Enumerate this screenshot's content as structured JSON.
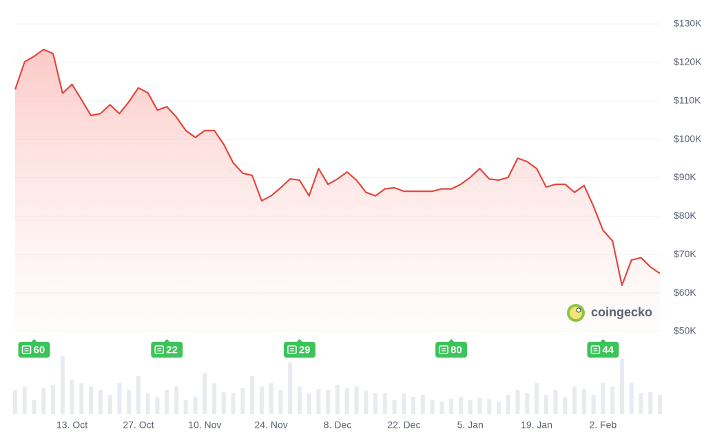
{
  "chart_data": {
    "type": "line",
    "categories": [
      null,
      null,
      null,
      null,
      null,
      null,
      "13. Oct",
      null,
      null,
      null,
      null,
      null,
      null,
      "27. Oct",
      null,
      null,
      null,
      null,
      null,
      null,
      "10. Nov",
      null,
      null,
      null,
      null,
      null,
      null,
      "24. Nov",
      null,
      null,
      null,
      null,
      null,
      null,
      "8. Dec",
      null,
      null,
      null,
      null,
      null,
      null,
      "22. Dec",
      null,
      null,
      null,
      null,
      null,
      null,
      "5. Jan",
      null,
      null,
      null,
      null,
      null,
      null,
      "19. Jan",
      null,
      null,
      null,
      null,
      null,
      null,
      "2. Feb",
      null,
      null,
      null,
      null,
      null,
      null
    ],
    "series": [
      {
        "name": null,
        "color": "#e5453b",
        "values": [
          113000,
          120200,
          121600,
          123400,
          122300,
          112000,
          114300,
          110300,
          106200,
          106700,
          109000,
          106700,
          109800,
          113400,
          112100,
          107600,
          108500,
          105800,
          102300,
          100500,
          102300,
          102300,
          98700,
          93900,
          91200,
          90600,
          84000,
          85300,
          87400,
          89700,
          89400,
          85300,
          92400,
          88300,
          89700,
          91500,
          89400,
          86200,
          85300,
          87100,
          87400,
          86500,
          86500,
          86500,
          86500,
          87100,
          87100,
          88300,
          90100,
          92400,
          89700,
          89400,
          90100,
          95100,
          94200,
          92400,
          87600,
          88300,
          88300,
          86200,
          88000,
          82600,
          76300,
          73600,
          62000,
          68600,
          69200,
          66800,
          65100
        ]
      }
    ],
    "volume": {
      "color": "#e8ebef",
      "values": [
        35,
        40,
        20,
        38,
        42,
        84,
        50,
        45,
        40,
        35,
        28,
        45,
        35,
        55,
        30,
        25,
        35,
        40,
        20,
        25,
        60,
        45,
        32,
        30,
        38,
        55,
        40,
        45,
        35,
        75,
        40,
        30,
        36,
        35,
        42,
        38,
        40,
        34,
        30,
        30,
        20,
        30,
        25,
        28,
        20,
        18,
        22,
        25,
        20,
        24,
        22,
        18,
        28,
        35,
        30,
        45,
        28,
        35,
        25,
        40,
        36,
        28,
        45,
        40,
        80,
        45,
        30,
        32,
        28
      ]
    },
    "news": {
      "color": "#3cc35a",
      "counts": [
        null,
        null,
        60,
        null,
        null,
        null,
        null,
        null,
        null,
        null,
        null,
        null,
        null,
        null,
        null,
        null,
        22,
        null,
        null,
        null,
        null,
        null,
        null,
        null,
        null,
        null,
        null,
        null,
        null,
        null,
        29,
        null,
        null,
        null,
        null,
        null,
        null,
        null,
        null,
        null,
        null,
        null,
        null,
        null,
        null,
        null,
        80,
        null,
        null,
        null,
        null,
        null,
        null,
        null,
        null,
        null,
        null,
        null,
        null,
        null,
        null,
        null,
        44,
        null,
        null,
        null,
        null,
        null,
        null
      ]
    },
    "ylim": [
      50000,
      130000
    ],
    "yticks": [
      {
        "value": 50000,
        "label": "$50K"
      },
      {
        "value": 60000,
        "label": "$60K"
      },
      {
        "value": 70000,
        "label": "$70K"
      },
      {
        "value": 80000,
        "label": "$80K"
      },
      {
        "value": 90000,
        "label": "$90K"
      },
      {
        "value": 100000,
        "label": "$100K"
      },
      {
        "value": 110000,
        "label": "$110K"
      },
      {
        "value": 120000,
        "label": "$120K"
      },
      {
        "value": 130000,
        "label": "$130K"
      }
    ],
    "grid": true,
    "watermark": "coingecko"
  }
}
